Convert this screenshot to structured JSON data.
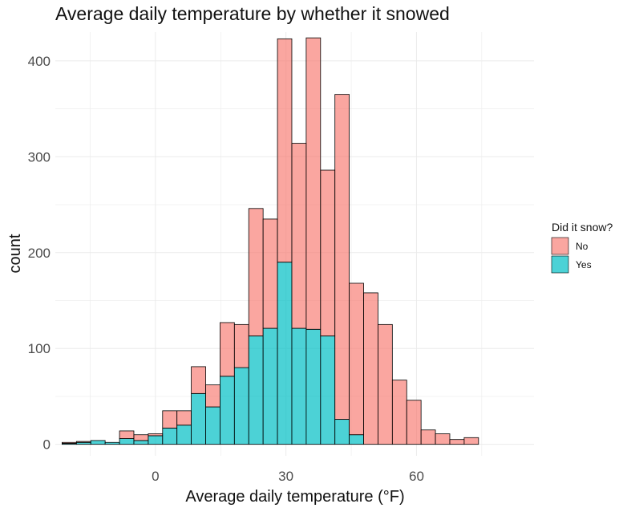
{
  "colors": {
    "no": "#F8766D",
    "yes": "#00BFC4",
    "outline": "#000000",
    "grid": "#ebebeb"
  },
  "chart_data": {
    "type": "bar",
    "stacked": true,
    "title": "Average daily temperature by whether it snowed",
    "xlabel": "Average daily temperature (°F)",
    "ylabel": "count",
    "xlim": [
      -23,
      87
    ],
    "ylim": [
      -12,
      430
    ],
    "x_ticks": [
      0,
      30,
      60
    ],
    "y_ticks": [
      0,
      100,
      200,
      300,
      400
    ],
    "bin_width": 3.3,
    "grid": true,
    "legend": {
      "title": "Did it snow?",
      "position": "right",
      "entries": [
        "No",
        "Yes"
      ]
    },
    "bins_start": [
      -21.45,
      -18.15,
      -14.85,
      -11.55,
      -8.25,
      -4.95,
      -1.65,
      1.65,
      4.95,
      8.25,
      11.55,
      14.85,
      18.15,
      21.45,
      24.75,
      28.05,
      31.35,
      34.65,
      37.95,
      41.25,
      44.55,
      47.85,
      51.15,
      54.45,
      57.75,
      61.05,
      64.35,
      67.65,
      70.95,
      74.25,
      77.55
    ],
    "series": [
      {
        "name": "No",
        "values": [
          1,
          1,
          0,
          0,
          8,
          6,
          2,
          18,
          15,
          28,
          23,
          56,
          45,
          133,
          114,
          233,
          193,
          304,
          173,
          339,
          158,
          158,
          125,
          67,
          46,
          15,
          11,
          5,
          7,
          0,
          0
        ]
      },
      {
        "name": "Yes",
        "values": [
          1,
          2,
          4,
          2,
          6,
          4,
          9,
          17,
          20,
          53,
          39,
          71,
          80,
          113,
          121,
          190,
          121,
          120,
          113,
          26,
          10,
          0,
          0,
          0,
          0,
          0,
          0,
          0,
          0,
          0,
          0
        ]
      }
    ]
  }
}
